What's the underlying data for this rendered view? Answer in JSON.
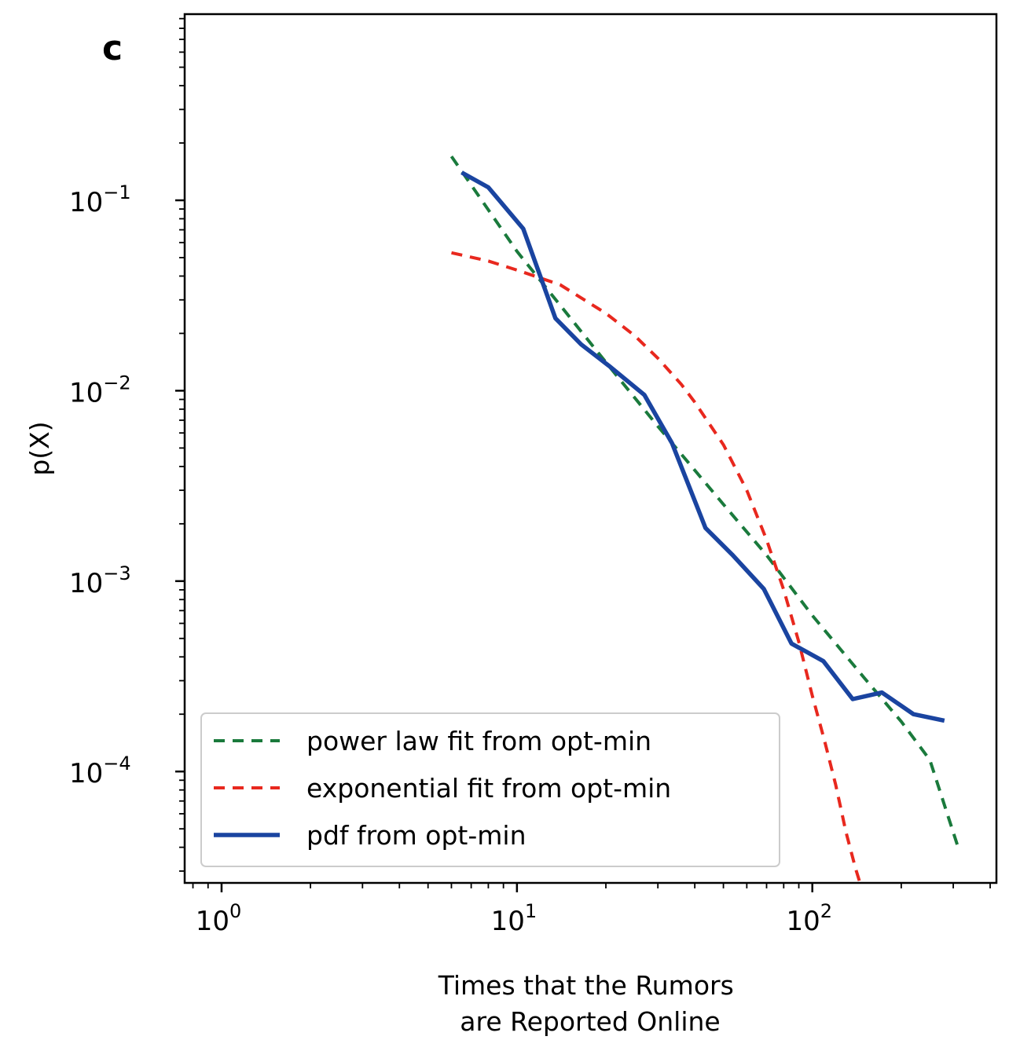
{
  "chart_data": {
    "type": "line",
    "panel_label": "c",
    "xlabel_lines": [
      "Times that the Rumors",
      "are Reported Online"
    ],
    "ylabel": "p(X)",
    "x_scale": "log",
    "y_scale": "log",
    "xlim": [
      0.75,
      420
    ],
    "ylim": [
      2.6e-05,
      0.95
    ],
    "x_ticks": [
      {
        "value": 1,
        "base": "10",
        "exp": "0"
      },
      {
        "value": 10,
        "base": "10",
        "exp": "1"
      },
      {
        "value": 100,
        "base": "10",
        "exp": "2"
      }
    ],
    "y_ticks": [
      {
        "value": 0.1,
        "base": "10",
        "exp": "−1"
      },
      {
        "value": 0.01,
        "base": "10",
        "exp": "−2"
      },
      {
        "value": 0.001,
        "base": "10",
        "exp": "−3"
      },
      {
        "value": 0.0001,
        "base": "10",
        "exp": "−4"
      }
    ],
    "grid": false,
    "legend_position": "lower-left",
    "series": [
      {
        "name": "power law fit from opt-min",
        "color": "#1a7a3c",
        "style": "dashed",
        "x": [
          6.0,
          10,
          20,
          30,
          50,
          70,
          100,
          150,
          200,
          250,
          310
        ],
        "y": [
          0.17,
          0.054,
          0.0141,
          0.0065,
          0.00253,
          0.00137,
          0.00066,
          0.00031,
          0.000183,
          0.000115,
          4.1e-05
        ]
      },
      {
        "name": "exponential fit from opt-min",
        "color": "#e8281e",
        "style": "dashed",
        "x": [
          6.0,
          8,
          10,
          14,
          20,
          25,
          30,
          36,
          40,
          50,
          60,
          70,
          80,
          90,
          100,
          110,
          120,
          130,
          140,
          145
        ],
        "y": [
          0.053,
          0.048,
          0.043,
          0.036,
          0.0255,
          0.0195,
          0.0148,
          0.0108,
          0.0087,
          0.0052,
          0.003,
          0.00165,
          0.0009,
          0.00048,
          0.00025,
          0.000145,
          8.5e-05,
          4.8e-05,
          3.1e-05,
          2.6e-05
        ]
      },
      {
        "name": "pdf from opt-min",
        "color": "#1a44a0",
        "style": "solid",
        "x": [
          6.5,
          8.0,
          10.5,
          13.5,
          16.5,
          20.5,
          27.0,
          33.5,
          43.5,
          53.5,
          68.5,
          85.0,
          109.0,
          137.0,
          172.0,
          220.0,
          280.0
        ],
        "y": [
          0.14,
          0.117,
          0.071,
          0.024,
          0.0175,
          0.0135,
          0.0095,
          0.0053,
          0.0019,
          0.00138,
          0.00091,
          0.00047,
          0.00038,
          0.00024,
          0.00026,
          0.0002,
          0.000185
        ]
      }
    ]
  }
}
